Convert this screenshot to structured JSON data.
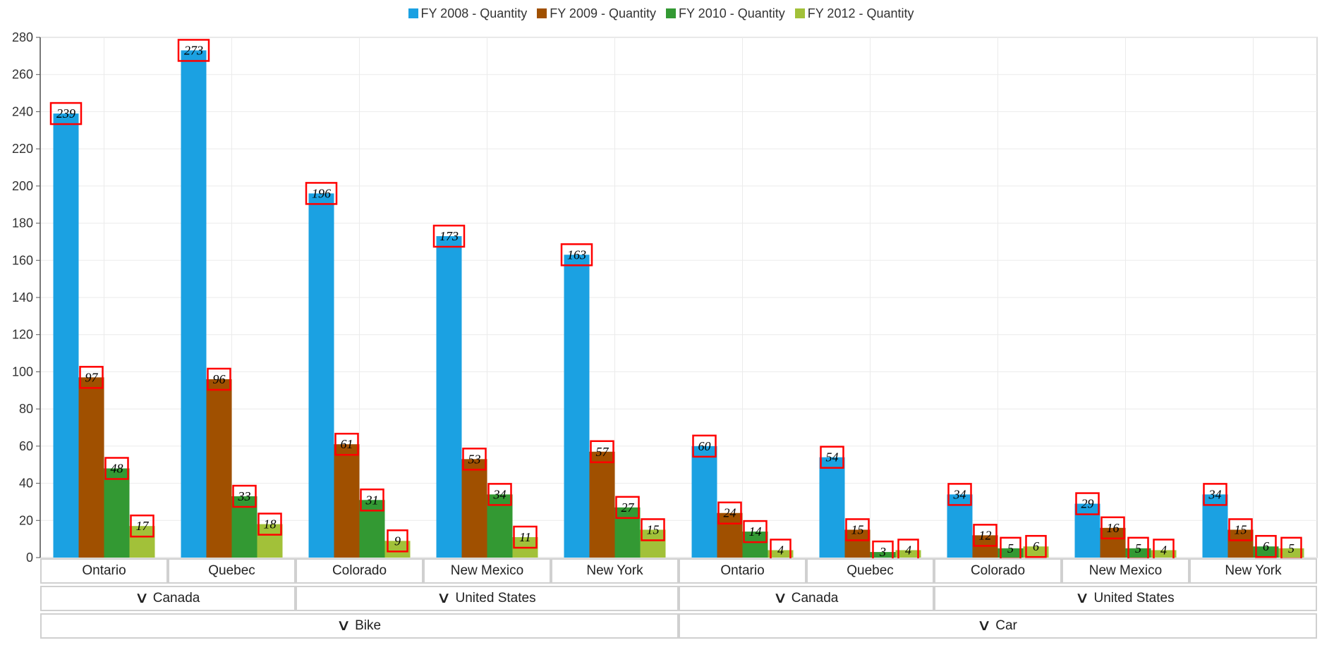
{
  "chart_data": {
    "type": "bar",
    "ylim": [
      0,
      280
    ],
    "y_ticks": [
      0,
      20,
      40,
      60,
      80,
      100,
      120,
      140,
      160,
      180,
      200,
      220,
      240,
      260,
      280
    ],
    "legend_position": "top-center",
    "grid": true,
    "categories": [
      "Ontario",
      "Quebec",
      "Colorado",
      "New Mexico",
      "New York",
      "Ontario",
      "Quebec",
      "Colorado",
      "New Mexico",
      "New York"
    ],
    "country_groups": [
      {
        "label": "Canada",
        "span": 2
      },
      {
        "label": "United States",
        "span": 3
      },
      {
        "label": "Canada",
        "span": 2
      },
      {
        "label": "United States",
        "span": 3
      }
    ],
    "product_groups": [
      {
        "label": "Bike",
        "span": 5
      },
      {
        "label": "Car",
        "span": 5
      }
    ],
    "series": [
      {
        "name": "FY 2008 - Quantity",
        "color": "#1ba1e2",
        "values": [
          239,
          273,
          196,
          173,
          163,
          60,
          54,
          34,
          29,
          34
        ]
      },
      {
        "name": "FY 2009 - Quantity",
        "color": "#a05000",
        "values": [
          97,
          96,
          61,
          53,
          57,
          24,
          15,
          12,
          16,
          15
        ]
      },
      {
        "name": "FY 2010 - Quantity",
        "color": "#339933",
        "values": [
          48,
          33,
          31,
          34,
          27,
          14,
          3,
          5,
          5,
          6
        ]
      },
      {
        "name": "FY 2012 - Quantity",
        "color": "#a2c139",
        "values": [
          17,
          18,
          9,
          11,
          15,
          4,
          4,
          6,
          4,
          5
        ]
      }
    ],
    "data_label_border_color": "#ff0000",
    "group_indicator_icon": "chevron-down-icon"
  }
}
